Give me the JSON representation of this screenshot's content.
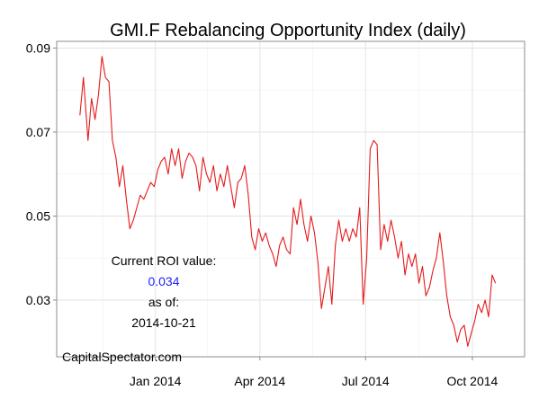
{
  "chart_data": {
    "type": "line",
    "title": "GMI.F Rebalancing Opportunity Index (daily)",
    "xlabel": "",
    "ylabel": "",
    "ylim": [
      0.0165,
      0.0916
    ],
    "yticks": [
      "0.03",
      "0.05",
      "0.07",
      "0.09"
    ],
    "ytick_values": [
      0.03,
      0.05,
      0.07,
      0.09
    ],
    "xticks": [
      "Jan 2014",
      "Apr 2014",
      "Jul 2014",
      "Oct 2014"
    ],
    "xtick_dates": [
      "2014-01-01",
      "2014-04-01",
      "2014-07-01",
      "2014-10-01"
    ],
    "xlim": [
      "2013-10-08",
      "2014-11-15"
    ],
    "grid": true,
    "line_color": "#e41a1c",
    "series": [
      {
        "dates": [
          "2013-10-28",
          "2013-10-31",
          "2013-11-04",
          "2013-11-07",
          "2013-11-10",
          "2013-11-13",
          "2013-11-16",
          "2013-11-19",
          "2013-11-22",
          "2013-11-25",
          "2013-11-28",
          "2013-12-01",
          "2013-12-04",
          "2013-12-07",
          "2013-12-10",
          "2013-12-13",
          "2013-12-16",
          "2013-12-19",
          "2013-12-22",
          "2013-12-25",
          "2013-12-28",
          "2013-12-31",
          "2014-01-03",
          "2014-01-06",
          "2014-01-09",
          "2014-01-12",
          "2014-01-15",
          "2014-01-18",
          "2014-01-21",
          "2014-01-24",
          "2014-01-27",
          "2014-01-30",
          "2014-02-02",
          "2014-02-05",
          "2014-02-08",
          "2014-02-11",
          "2014-02-14",
          "2014-02-17",
          "2014-02-20",
          "2014-02-23",
          "2014-02-26",
          "2014-03-01",
          "2014-03-04",
          "2014-03-07",
          "2014-03-10",
          "2014-03-13",
          "2014-03-16",
          "2014-03-19",
          "2014-03-22",
          "2014-03-25",
          "2014-03-28",
          "2014-03-31",
          "2014-04-03",
          "2014-04-06",
          "2014-04-09",
          "2014-04-12",
          "2014-04-15",
          "2014-04-18",
          "2014-04-21",
          "2014-04-24",
          "2014-04-27",
          "2014-04-30",
          "2014-05-03",
          "2014-05-06",
          "2014-05-09",
          "2014-05-12",
          "2014-05-15",
          "2014-05-18",
          "2014-05-21",
          "2014-05-24",
          "2014-05-27",
          "2014-05-30",
          "2014-06-02",
          "2014-06-05",
          "2014-06-08",
          "2014-06-11",
          "2014-06-14",
          "2014-06-17",
          "2014-06-20",
          "2014-06-23",
          "2014-06-26",
          "2014-06-29",
          "2014-07-02",
          "2014-07-05",
          "2014-07-08",
          "2014-07-11",
          "2014-07-14",
          "2014-07-17",
          "2014-07-20",
          "2014-07-23",
          "2014-07-26",
          "2014-07-29",
          "2014-08-01",
          "2014-08-04",
          "2014-08-07",
          "2014-08-10",
          "2014-08-13",
          "2014-08-16",
          "2014-08-19",
          "2014-08-22",
          "2014-08-25",
          "2014-08-28",
          "2014-08-31",
          "2014-09-03",
          "2014-09-06",
          "2014-09-09",
          "2014-09-12",
          "2014-09-15",
          "2014-09-18",
          "2014-09-21",
          "2014-09-24",
          "2014-09-27",
          "2014-09-30",
          "2014-10-03",
          "2014-10-06",
          "2014-10-09",
          "2014-10-12",
          "2014-10-15",
          "2014-10-18",
          "2014-10-21"
        ],
        "values": [
          0.074,
          0.083,
          0.068,
          0.078,
          0.073,
          0.079,
          0.088,
          0.083,
          0.082,
          0.068,
          0.064,
          0.057,
          0.062,
          0.054,
          0.047,
          0.049,
          0.052,
          0.055,
          0.054,
          0.056,
          0.058,
          0.057,
          0.061,
          0.063,
          0.064,
          0.06,
          0.066,
          0.062,
          0.066,
          0.059,
          0.063,
          0.065,
          0.064,
          0.062,
          0.056,
          0.064,
          0.06,
          0.058,
          0.062,
          0.056,
          0.06,
          0.057,
          0.062,
          0.057,
          0.052,
          0.058,
          0.059,
          0.062,
          0.055,
          0.045,
          0.042,
          0.047,
          0.044,
          0.046,
          0.043,
          0.041,
          0.038,
          0.043,
          0.045,
          0.042,
          0.041,
          0.052,
          0.048,
          0.054,
          0.048,
          0.044,
          0.05,
          0.046,
          0.039,
          0.028,
          0.033,
          0.038,
          0.029,
          0.043,
          0.049,
          0.044,
          0.047,
          0.044,
          0.047,
          0.045,
          0.052,
          0.029,
          0.04,
          0.066,
          0.068,
          0.067,
          0.042,
          0.048,
          0.044,
          0.049,
          0.045,
          0.04,
          0.044,
          0.036,
          0.041,
          0.038,
          0.041,
          0.034,
          0.038,
          0.031,
          0.033,
          0.037,
          0.04,
          0.046,
          0.039,
          0.031,
          0.026,
          0.024,
          0.02,
          0.023,
          0.024,
          0.019,
          0.022,
          0.025,
          0.029,
          0.027,
          0.03,
          0.026,
          0.036,
          0.034
        ]
      }
    ]
  },
  "annotation": {
    "label": "Current ROI value:",
    "value": "0.034",
    "value_color": "#1f1fff",
    "asof_label": "as of:",
    "date": "2014-10-21"
  },
  "credit": "CapitalSpectator.com"
}
